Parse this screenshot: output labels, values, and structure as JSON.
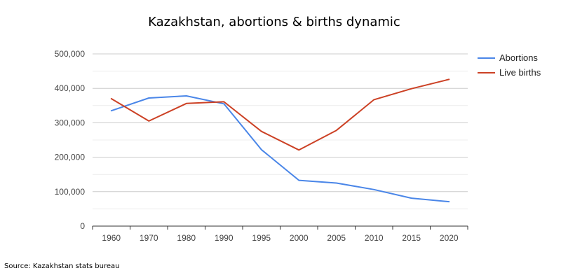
{
  "chart_data": {
    "type": "line",
    "title": "Kazakhstan, abortions & births dynamic",
    "categories": [
      "1960",
      "1970",
      "1980",
      "1990",
      "1995",
      "2000",
      "2005",
      "2010",
      "2015",
      "2020"
    ],
    "series": [
      {
        "name": "Abortions",
        "color": "#4a86e8",
        "values": [
          335000,
          372000,
          378000,
          355000,
          222000,
          133000,
          125000,
          106000,
          81000,
          71000
        ]
      },
      {
        "name": "Live births",
        "color": "#cc4125",
        "values": [
          370000,
          305000,
          356000,
          361000,
          275000,
          221000,
          278000,
          367000,
          399000,
          426000
        ]
      }
    ],
    "y_ticks": [
      "0",
      "100,000",
      "200,000",
      "300,000",
      "400,000",
      "500,000"
    ],
    "ylim": [
      0,
      500000
    ],
    "xlabel": "",
    "ylabel": "",
    "legend_position": "right"
  },
  "source": "Source: Kazakhstan stats bureau"
}
